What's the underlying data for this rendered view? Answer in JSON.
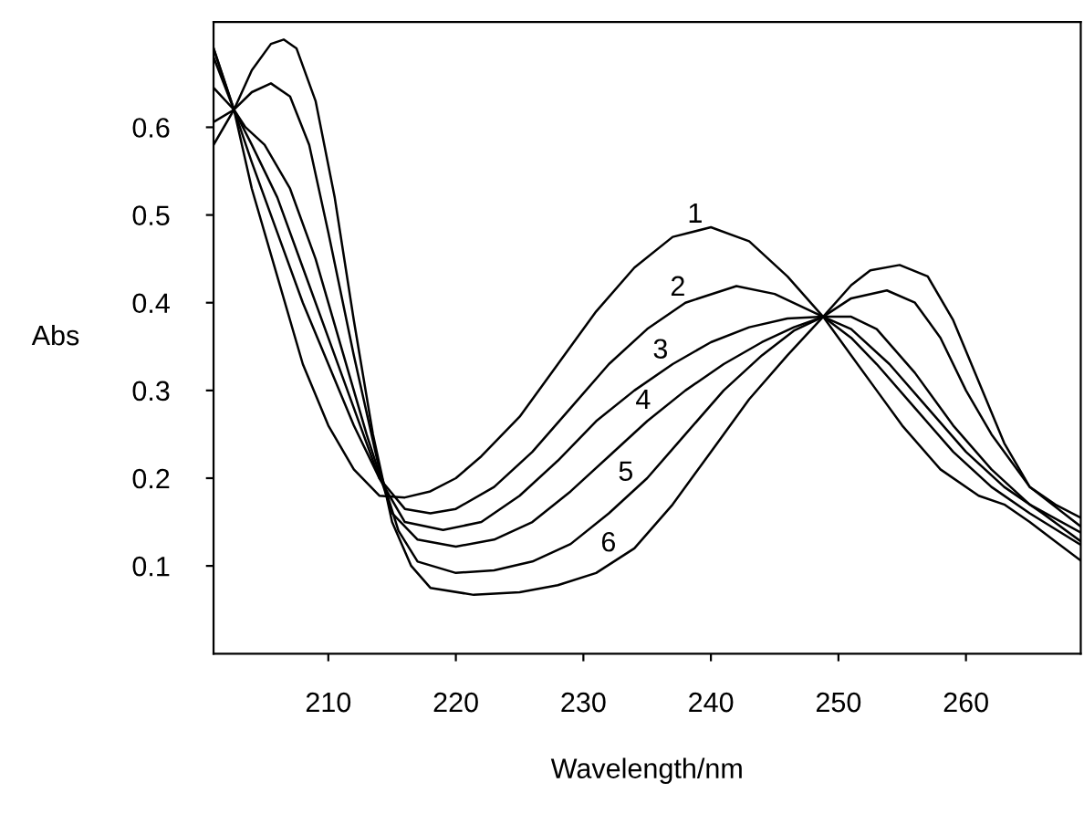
{
  "chart_data": {
    "type": "line",
    "xlabel": "Wavelength/nm",
    "ylabel": "Abs",
    "xlim": [
      201,
      269
    ],
    "ylim": [
      0,
      0.72
    ],
    "xticks": [
      210,
      220,
      230,
      240,
      250,
      260
    ],
    "yticks": [
      0.1,
      0.2,
      0.3,
      0.4,
      0.5,
      0.6
    ],
    "grid": false,
    "legend": false,
    "marker": "none",
    "line_style": "solid",
    "series": [
      {
        "name": "1",
        "color": "#000000",
        "x": [
          201,
          202.6,
          204,
          206,
          208,
          210,
          212,
          214,
          216,
          218,
          220,
          222,
          225,
          228,
          231,
          234,
          237,
          240,
          243,
          246,
          248.8,
          251,
          253,
          255,
          258,
          261,
          263,
          265,
          267,
          269
        ],
        "values": [
          0.69,
          0.62,
          0.53,
          0.43,
          0.33,
          0.26,
          0.21,
          0.18,
          0.178,
          0.185,
          0.2,
          0.225,
          0.27,
          0.33,
          0.39,
          0.44,
          0.475,
          0.486,
          0.47,
          0.43,
          0.384,
          0.34,
          0.3,
          0.26,
          0.21,
          0.18,
          0.17,
          0.15,
          0.128,
          0.106
        ]
      },
      {
        "name": "2",
        "color": "#000000",
        "x": [
          201,
          202.6,
          204,
          206,
          208,
          210,
          212,
          214,
          216,
          218,
          220,
          223,
          226,
          229,
          232,
          235,
          238,
          242,
          245,
          248.8,
          251,
          253,
          256,
          259,
          262,
          265,
          269
        ],
        "values": [
          0.69,
          0.62,
          0.56,
          0.48,
          0.4,
          0.33,
          0.26,
          0.2,
          0.165,
          0.16,
          0.165,
          0.19,
          0.23,
          0.28,
          0.33,
          0.37,
          0.4,
          0.419,
          0.41,
          0.384,
          0.36,
          0.33,
          0.28,
          0.23,
          0.19,
          0.16,
          0.124
        ]
      },
      {
        "name": "3",
        "color": "#000000",
        "x": [
          201,
          202.6,
          204,
          206,
          208,
          210,
          212,
          214,
          216,
          219,
          222,
          225,
          228,
          231,
          234,
          237,
          240,
          243,
          246,
          248.8,
          251,
          254,
          257,
          260,
          263,
          266,
          269
        ],
        "values": [
          0.68,
          0.62,
          0.58,
          0.52,
          0.44,
          0.36,
          0.28,
          0.2,
          0.15,
          0.141,
          0.15,
          0.18,
          0.22,
          0.265,
          0.3,
          0.33,
          0.355,
          0.372,
          0.382,
          0.384,
          0.37,
          0.33,
          0.28,
          0.23,
          0.19,
          0.16,
          0.128
        ]
      },
      {
        "name": "4",
        "color": "#000000",
        "x": [
          201,
          202.6,
          203.5,
          205,
          207,
          209,
          211,
          213,
          215,
          217,
          220,
          223,
          226,
          229,
          232,
          235,
          238,
          241,
          244,
          246.5,
          248.8,
          251,
          253,
          256,
          259,
          262,
          265,
          269
        ],
        "values": [
          0.645,
          0.62,
          0.6,
          0.58,
          0.53,
          0.45,
          0.35,
          0.25,
          0.16,
          0.13,
          0.122,
          0.13,
          0.15,
          0.185,
          0.225,
          0.265,
          0.3,
          0.33,
          0.355,
          0.372,
          0.384,
          0.384,
          0.37,
          0.32,
          0.26,
          0.21,
          0.17,
          0.138
        ]
      },
      {
        "name": "5",
        "color": "#000000",
        "x": [
          201,
          202.6,
          204,
          205.5,
          207,
          208.5,
          210,
          212,
          214,
          215.5,
          217,
          220,
          223,
          226,
          229,
          232,
          235,
          238,
          241,
          244,
          246.5,
          248.8,
          251,
          253.8,
          256,
          258,
          260,
          262,
          265,
          269
        ],
        "values": [
          0.606,
          0.62,
          0.64,
          0.65,
          0.635,
          0.58,
          0.48,
          0.34,
          0.21,
          0.14,
          0.105,
          0.092,
          0.095,
          0.105,
          0.125,
          0.16,
          0.2,
          0.25,
          0.3,
          0.34,
          0.368,
          0.384,
          0.405,
          0.414,
          0.4,
          0.36,
          0.3,
          0.25,
          0.19,
          0.145
        ]
      },
      {
        "name": "6",
        "color": "#000000",
        "x": [
          201,
          202.6,
          204,
          205.5,
          206.5,
          207.5,
          209,
          210.5,
          212,
          213.5,
          215,
          216.5,
          218,
          221.4,
          225,
          228,
          231,
          234,
          237,
          240,
          243,
          246,
          248.8,
          251,
          252.5,
          254.8,
          257,
          259,
          261,
          263,
          265,
          267,
          269
        ],
        "values": [
          0.58,
          0.62,
          0.665,
          0.695,
          0.7,
          0.69,
          0.63,
          0.52,
          0.38,
          0.25,
          0.15,
          0.1,
          0.075,
          0.067,
          0.07,
          0.078,
          0.092,
          0.12,
          0.17,
          0.23,
          0.29,
          0.34,
          0.384,
          0.42,
          0.437,
          0.443,
          0.43,
          0.38,
          0.31,
          0.24,
          0.19,
          0.17,
          0.155
        ]
      }
    ]
  }
}
